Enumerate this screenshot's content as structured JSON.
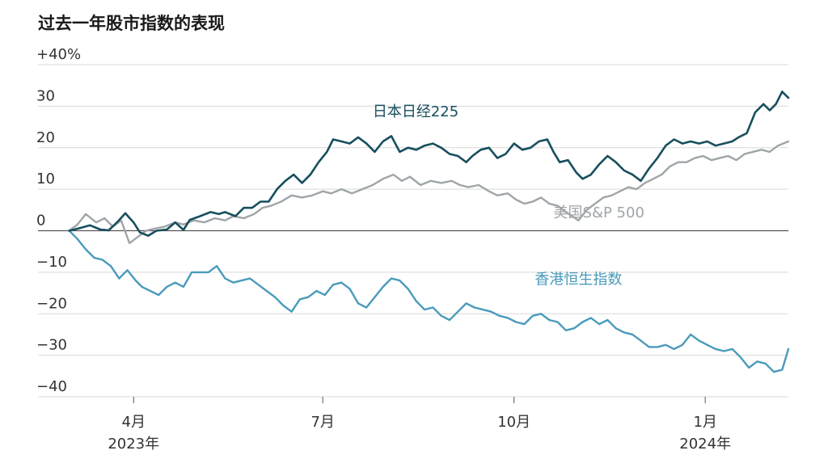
{
  "chart_data": {
    "type": "line",
    "title": "过去一年股市指数的表现",
    "y_tick_labels": [
      "+40%",
      "30",
      "20",
      "10",
      "0",
      "−10",
      "−20",
      "−30",
      "−40"
    ],
    "y_tick_values": [
      40,
      30,
      20,
      10,
      0,
      -10,
      -20,
      -30,
      -40
    ],
    "ylim": [
      -40,
      40
    ],
    "xlim": [
      "2023-02-14",
      "2024-02-10"
    ],
    "x_ticks": [
      {
        "date": "2023-04-01",
        "label": "4月",
        "sublabel": "2023年"
      },
      {
        "date": "2023-07-01",
        "label": "7月",
        "sublabel": ""
      },
      {
        "date": "2023-10-01",
        "label": "10月",
        "sublabel": ""
      },
      {
        "date": "2024-01-01",
        "label": "1月",
        "sublabel": "2024年"
      }
    ],
    "grid": true,
    "series": [
      {
        "name": "日本日经225",
        "color": "#174f5e",
        "stroke_width": 2.6,
        "points": [
          [
            "2023-03-01",
            0.0
          ],
          [
            "2023-03-06",
            0.6
          ],
          [
            "2023-03-11",
            1.3
          ],
          [
            "2023-03-16",
            0.3
          ],
          [
            "2023-03-20",
            0.1
          ],
          [
            "2023-03-24",
            2.0
          ],
          [
            "2023-03-28",
            4.2
          ],
          [
            "2023-04-01",
            2.0
          ],
          [
            "2023-04-04",
            -0.4
          ],
          [
            "2023-04-08",
            -1.2
          ],
          [
            "2023-04-12",
            0.0
          ],
          [
            "2023-04-17",
            0.3
          ],
          [
            "2023-04-21",
            2.0
          ],
          [
            "2023-04-25",
            0.2
          ],
          [
            "2023-04-28",
            2.6
          ],
          [
            "2023-05-03",
            3.5
          ],
          [
            "2023-05-08",
            4.5
          ],
          [
            "2023-05-12",
            4.0
          ],
          [
            "2023-05-15",
            4.5
          ],
          [
            "2023-05-20",
            3.5
          ],
          [
            "2023-05-24",
            5.5
          ],
          [
            "2023-05-28",
            5.5
          ],
          [
            "2023-06-01",
            7.0
          ],
          [
            "2023-06-05",
            7.0
          ],
          [
            "2023-06-09",
            10.0
          ],
          [
            "2023-06-13",
            12.0
          ],
          [
            "2023-06-17",
            13.5
          ],
          [
            "2023-06-21",
            11.5
          ],
          [
            "2023-06-25",
            13.5
          ],
          [
            "2023-06-29",
            16.5
          ],
          [
            "2023-07-03",
            19.0
          ],
          [
            "2023-07-06",
            22.0
          ],
          [
            "2023-07-10",
            21.5
          ],
          [
            "2023-07-14",
            21.0
          ],
          [
            "2023-07-18",
            22.5
          ],
          [
            "2023-07-22",
            21.0
          ],
          [
            "2023-07-26",
            19.0
          ],
          [
            "2023-07-30",
            21.5
          ],
          [
            "2023-08-03",
            22.8
          ],
          [
            "2023-08-07",
            19.0
          ],
          [
            "2023-08-11",
            20.0
          ],
          [
            "2023-08-15",
            19.5
          ],
          [
            "2023-08-19",
            20.5
          ],
          [
            "2023-08-23",
            21.0
          ],
          [
            "2023-08-27",
            20.0
          ],
          [
            "2023-08-31",
            18.5
          ],
          [
            "2023-09-04",
            18.0
          ],
          [
            "2023-09-08",
            16.5
          ],
          [
            "2023-09-11",
            18.0
          ],
          [
            "2023-09-15",
            19.5
          ],
          [
            "2023-09-19",
            20.0
          ],
          [
            "2023-09-23",
            17.5
          ],
          [
            "2023-09-27",
            18.5
          ],
          [
            "2023-10-01",
            21.0
          ],
          [
            "2023-10-05",
            19.5
          ],
          [
            "2023-10-09",
            20.0
          ],
          [
            "2023-10-13",
            21.5
          ],
          [
            "2023-10-17",
            22.0
          ],
          [
            "2023-10-20",
            19.0
          ],
          [
            "2023-10-23",
            16.5
          ],
          [
            "2023-10-27",
            17.0
          ],
          [
            "2023-10-31",
            14.0
          ],
          [
            "2023-11-03",
            12.5
          ],
          [
            "2023-11-07",
            13.5
          ],
          [
            "2023-11-11",
            16.0
          ],
          [
            "2023-11-15",
            18.0
          ],
          [
            "2023-11-19",
            16.5
          ],
          [
            "2023-11-23",
            14.5
          ],
          [
            "2023-11-27",
            13.5
          ],
          [
            "2023-12-01",
            12.0
          ],
          [
            "2023-12-05",
            15.0
          ],
          [
            "2023-12-09",
            17.5
          ],
          [
            "2023-12-13",
            20.5
          ],
          [
            "2023-12-17",
            22.0
          ],
          [
            "2023-12-21",
            21.0
          ],
          [
            "2023-12-25",
            21.5
          ],
          [
            "2023-12-29",
            21.0
          ],
          [
            "2024-01-02",
            21.5
          ],
          [
            "2024-01-06",
            20.5
          ],
          [
            "2024-01-10",
            21.0
          ],
          [
            "2024-01-14",
            21.5
          ],
          [
            "2024-01-17",
            22.5
          ],
          [
            "2024-01-21",
            23.5
          ],
          [
            "2024-01-25",
            28.5
          ],
          [
            "2024-01-29",
            30.5
          ],
          [
            "2024-02-01",
            29.0
          ],
          [
            "2024-02-04",
            30.5
          ],
          [
            "2024-02-07",
            33.5
          ],
          [
            "2024-02-10",
            32.0
          ]
        ]
      },
      {
        "name": "美国S&P 500",
        "color": "#9fa5a8",
        "stroke_width": 2.4,
        "points": [
          [
            "2023-03-01",
            0.0
          ],
          [
            "2023-03-05",
            1.5
          ],
          [
            "2023-03-09",
            4.0
          ],
          [
            "2023-03-14",
            2.0
          ],
          [
            "2023-03-18",
            3.0
          ],
          [
            "2023-03-22",
            1.0
          ],
          [
            "2023-03-26",
            2.5
          ],
          [
            "2023-03-30",
            -3.0
          ],
          [
            "2023-04-03",
            -1.5
          ],
          [
            "2023-04-07",
            0.0
          ],
          [
            "2023-04-11",
            0.5
          ],
          [
            "2023-04-16",
            1.0
          ],
          [
            "2023-04-21",
            2.0
          ],
          [
            "2023-04-25",
            1.5
          ],
          [
            "2023-04-30",
            2.5
          ],
          [
            "2023-05-05",
            2.0
          ],
          [
            "2023-05-10",
            3.0
          ],
          [
            "2023-05-15",
            2.5
          ],
          [
            "2023-05-19",
            3.5
          ],
          [
            "2023-05-24",
            3.0
          ],
          [
            "2023-05-29",
            4.0
          ],
          [
            "2023-06-02",
            5.5
          ],
          [
            "2023-06-06",
            6.0
          ],
          [
            "2023-06-11",
            7.0
          ],
          [
            "2023-06-16",
            8.5
          ],
          [
            "2023-06-21",
            8.0
          ],
          [
            "2023-06-26",
            8.5
          ],
          [
            "2023-07-01",
            9.5
          ],
          [
            "2023-07-05",
            9.0
          ],
          [
            "2023-07-10",
            10.0
          ],
          [
            "2023-07-15",
            9.0
          ],
          [
            "2023-07-20",
            10.0
          ],
          [
            "2023-07-25",
            11.0
          ],
          [
            "2023-07-30",
            12.5
          ],
          [
            "2023-08-04",
            13.5
          ],
          [
            "2023-08-08",
            12.0
          ],
          [
            "2023-08-12",
            13.0
          ],
          [
            "2023-08-17",
            11.0
          ],
          [
            "2023-08-22",
            12.0
          ],
          [
            "2023-08-27",
            11.5
          ],
          [
            "2023-09-01",
            12.0
          ],
          [
            "2023-09-05",
            11.0
          ],
          [
            "2023-09-09",
            10.5
          ],
          [
            "2023-09-14",
            11.0
          ],
          [
            "2023-09-19",
            9.5
          ],
          [
            "2023-09-23",
            8.5
          ],
          [
            "2023-09-28",
            9.0
          ],
          [
            "2023-10-02",
            7.5
          ],
          [
            "2023-10-06",
            6.5
          ],
          [
            "2023-10-10",
            7.0
          ],
          [
            "2023-10-14",
            8.0
          ],
          [
            "2023-10-18",
            6.5
          ],
          [
            "2023-10-22",
            6.0
          ],
          [
            "2023-10-26",
            4.5
          ],
          [
            "2023-10-29",
            3.5
          ],
          [
            "2023-11-01",
            2.5
          ],
          [
            "2023-11-05",
            5.0
          ],
          [
            "2023-11-09",
            6.5
          ],
          [
            "2023-11-13",
            8.0
          ],
          [
            "2023-11-17",
            8.5
          ],
          [
            "2023-11-21",
            9.5
          ],
          [
            "2023-11-25",
            10.5
          ],
          [
            "2023-11-29",
            10.0
          ],
          [
            "2023-12-03",
            11.5
          ],
          [
            "2023-12-07",
            12.5
          ],
          [
            "2023-12-11",
            13.5
          ],
          [
            "2023-12-15",
            15.5
          ],
          [
            "2023-12-19",
            16.5
          ],
          [
            "2023-12-23",
            16.5
          ],
          [
            "2023-12-27",
            17.5
          ],
          [
            "2023-12-31",
            18.0
          ],
          [
            "2024-01-04",
            17.0
          ],
          [
            "2024-01-08",
            17.5
          ],
          [
            "2024-01-12",
            18.0
          ],
          [
            "2024-01-16",
            17.0
          ],
          [
            "2024-01-20",
            18.5
          ],
          [
            "2024-01-24",
            19.0
          ],
          [
            "2024-01-28",
            19.5
          ],
          [
            "2024-02-01",
            19.0
          ],
          [
            "2024-02-05",
            20.5
          ],
          [
            "2024-02-10",
            21.5
          ]
        ]
      },
      {
        "name": "香港恒生指数",
        "color": "#4a9bbb",
        "stroke_width": 2.4,
        "points": [
          [
            "2023-03-01",
            0.0
          ],
          [
            "2023-03-05",
            -2.0
          ],
          [
            "2023-03-09",
            -4.5
          ],
          [
            "2023-03-13",
            -6.5
          ],
          [
            "2023-03-17",
            -7.0
          ],
          [
            "2023-03-21",
            -8.5
          ],
          [
            "2023-03-25",
            -11.5
          ],
          [
            "2023-03-29",
            -9.5
          ],
          [
            "2023-04-02",
            -12.0
          ],
          [
            "2023-04-05",
            -13.5
          ],
          [
            "2023-04-09",
            -14.5
          ],
          [
            "2023-04-13",
            -15.5
          ],
          [
            "2023-04-17",
            -13.5
          ],
          [
            "2023-04-21",
            -12.5
          ],
          [
            "2023-04-25",
            -13.5
          ],
          [
            "2023-04-29",
            -10.0
          ],
          [
            "2023-05-03",
            -10.0
          ],
          [
            "2023-05-07",
            -10.0
          ],
          [
            "2023-05-11",
            -8.5
          ],
          [
            "2023-05-15",
            -11.5
          ],
          [
            "2023-05-19",
            -12.5
          ],
          [
            "2023-05-23",
            -12.0
          ],
          [
            "2023-05-27",
            -11.5
          ],
          [
            "2023-05-31",
            -13.0
          ],
          [
            "2023-06-04",
            -14.5
          ],
          [
            "2023-06-08",
            -16.0
          ],
          [
            "2023-06-12",
            -18.0
          ],
          [
            "2023-06-16",
            -19.5
          ],
          [
            "2023-06-20",
            -16.5
          ],
          [
            "2023-06-24",
            -16.0
          ],
          [
            "2023-06-28",
            -14.5
          ],
          [
            "2023-07-02",
            -15.5
          ],
          [
            "2023-07-06",
            -13.0
          ],
          [
            "2023-07-10",
            -12.5
          ],
          [
            "2023-07-14",
            -14.0
          ],
          [
            "2023-07-18",
            -17.5
          ],
          [
            "2023-07-22",
            -18.5
          ],
          [
            "2023-07-26",
            -16.0
          ],
          [
            "2023-07-30",
            -13.5
          ],
          [
            "2023-08-03",
            -11.5
          ],
          [
            "2023-08-07",
            -12.0
          ],
          [
            "2023-08-11",
            -14.0
          ],
          [
            "2023-08-15",
            -17.0
          ],
          [
            "2023-08-19",
            -19.0
          ],
          [
            "2023-08-23",
            -18.5
          ],
          [
            "2023-08-27",
            -20.5
          ],
          [
            "2023-08-31",
            -21.5
          ],
          [
            "2023-09-04",
            -19.5
          ],
          [
            "2023-09-08",
            -17.5
          ],
          [
            "2023-09-12",
            -18.5
          ],
          [
            "2023-09-16",
            -19.0
          ],
          [
            "2023-09-20",
            -19.5
          ],
          [
            "2023-09-24",
            -20.5
          ],
          [
            "2023-09-28",
            -21.0
          ],
          [
            "2023-10-02",
            -22.0
          ],
          [
            "2023-10-06",
            -22.5
          ],
          [
            "2023-10-10",
            -20.5
          ],
          [
            "2023-10-14",
            -20.0
          ],
          [
            "2023-10-18",
            -21.5
          ],
          [
            "2023-10-22",
            -22.0
          ],
          [
            "2023-10-26",
            -24.0
          ],
          [
            "2023-10-30",
            -23.5
          ],
          [
            "2023-11-03",
            -22.0
          ],
          [
            "2023-11-07",
            -21.0
          ],
          [
            "2023-11-11",
            -22.5
          ],
          [
            "2023-11-15",
            -21.5
          ],
          [
            "2023-11-19",
            -23.5
          ],
          [
            "2023-11-23",
            -24.5
          ],
          [
            "2023-11-27",
            -25.0
          ],
          [
            "2023-12-01",
            -26.5
          ],
          [
            "2023-12-05",
            -28.0
          ],
          [
            "2023-12-09",
            -28.0
          ],
          [
            "2023-12-13",
            -27.5
          ],
          [
            "2023-12-17",
            -28.5
          ],
          [
            "2023-12-21",
            -27.5
          ],
          [
            "2023-12-25",
            -25.0
          ],
          [
            "2023-12-29",
            -26.5
          ],
          [
            "2024-01-02",
            -27.5
          ],
          [
            "2024-01-06",
            -28.5
          ],
          [
            "2024-01-10",
            -29.0
          ],
          [
            "2024-01-14",
            -28.5
          ],
          [
            "2024-01-18",
            -30.5
          ],
          [
            "2024-01-22",
            -33.0
          ],
          [
            "2024-01-26",
            -31.5
          ],
          [
            "2024-01-30",
            -32.0
          ],
          [
            "2024-02-03",
            -34.0
          ],
          [
            "2024-02-07",
            -33.5
          ],
          [
            "2024-02-10",
            -28.5
          ]
        ]
      }
    ]
  }
}
